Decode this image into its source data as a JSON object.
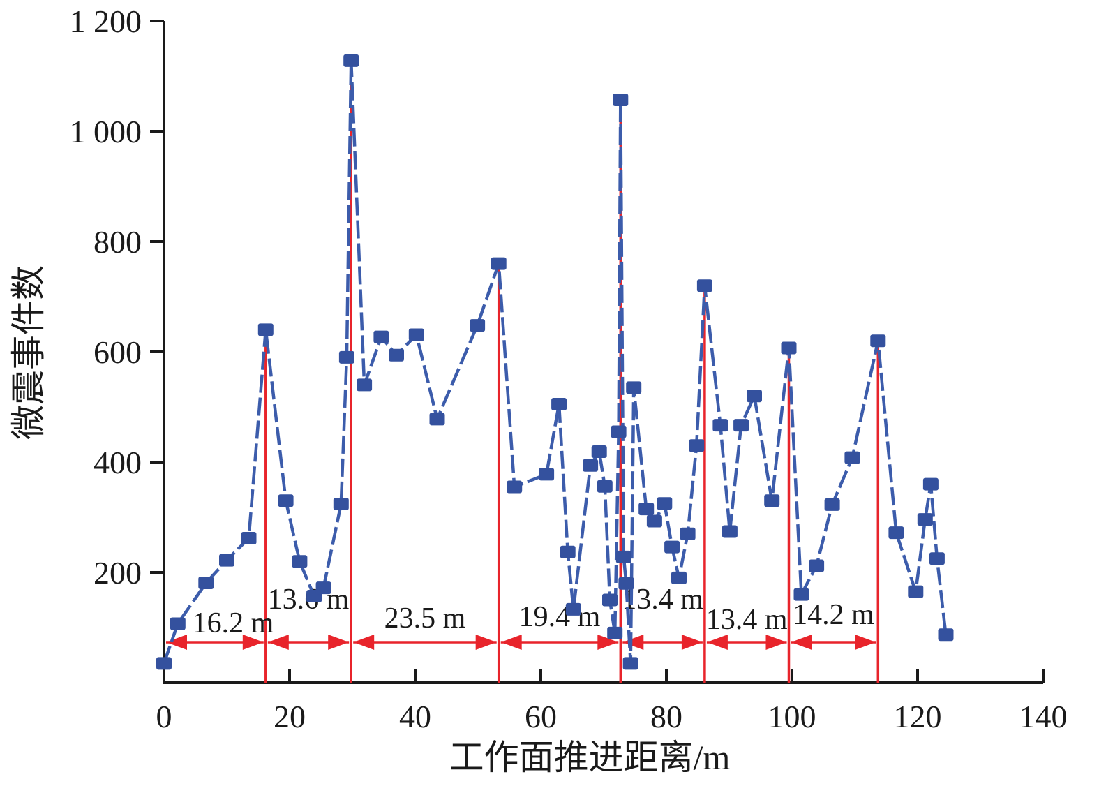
{
  "chart_data": {
    "type": "line",
    "title": "",
    "xlabel": "工作面推进距离/m",
    "ylabel": "微震事件数",
    "xlim": [
      0,
      140
    ],
    "ylim": [
      0,
      1200
    ],
    "grid": false,
    "legend": "none",
    "x_ticks": [
      0,
      20,
      40,
      60,
      80,
      100,
      120,
      140
    ],
    "y_ticks": [
      {
        "value": 200,
        "label": "200"
      },
      {
        "value": 400,
        "label": "400"
      },
      {
        "value": 600,
        "label": "600"
      },
      {
        "value": 800,
        "label": "800"
      },
      {
        "value": 1000,
        "label": "1 000"
      },
      {
        "value": 1200,
        "label": "1 200"
      }
    ],
    "series": [
      {
        "name": "微震事件数",
        "marker": "square",
        "x": [
          0,
          2.2,
          6.7,
          10,
          13.5,
          16.2,
          19.4,
          21.6,
          23.9,
          25.4,
          28.2,
          29.1,
          29.8,
          31.9,
          34.6,
          37,
          40.2,
          43.5,
          49.9,
          53.3,
          55.8,
          60.9,
          62.9,
          64.3,
          65.2,
          67.9,
          69.3,
          70.2,
          71,
          71.8,
          72.4,
          72.7,
          73.2,
          73.6,
          74.3,
          74.8,
          76.8,
          78.1,
          79.7,
          80.9,
          82,
          83.4,
          84.8,
          86.1,
          88.6,
          90.1,
          91.9,
          94,
          96.8,
          99.5,
          101.5,
          103.9,
          106.4,
          109.6,
          113.7,
          116.6,
          119.7,
          121.2,
          122.1,
          123.1,
          124.5
        ],
        "y": [
          35,
          107,
          181,
          222,
          262,
          640,
          330,
          220,
          157,
          172,
          324,
          590,
          1128,
          540,
          627,
          594,
          631,
          478,
          648,
          760,
          355,
          378,
          505,
          237,
          133,
          394,
          419,
          356,
          150,
          90,
          455,
          1057,
          228,
          180,
          35,
          535,
          315,
          293,
          325,
          246,
          190,
          270,
          430,
          720,
          467,
          274,
          467,
          520,
          330,
          607,
          160,
          212,
          323,
          408,
          620,
          272,
          165,
          296,
          360,
          225,
          87
        ]
      }
    ],
    "peak_lines": [
      {
        "x": 16.2,
        "top": 640
      },
      {
        "x": 29.8,
        "top": 1128
      },
      {
        "x": 53.3,
        "top": 760
      },
      {
        "x": 72.7,
        "top": 1057
      },
      {
        "x": 86.1,
        "top": 720
      },
      {
        "x": 99.5,
        "top": 607
      },
      {
        "x": 113.7,
        "top": 620
      }
    ],
    "intervals": [
      {
        "from": 0,
        "to": 16.2,
        "label": "16.2 m",
        "label_dx": 26,
        "label_y": 906
      },
      {
        "from": 16.2,
        "to": 29.8,
        "label": "13.6 m",
        "label_dx": 0,
        "label_y": 872
      },
      {
        "from": 29.8,
        "to": 53.3,
        "label": "23.5 m",
        "label_dx": 0,
        "label_y": 899
      },
      {
        "from": 53.3,
        "to": 72.7,
        "label": "19.4 m",
        "label_dx": 0,
        "label_y": 897
      },
      {
        "from": 72.7,
        "to": 86.1,
        "label": "13.4 m",
        "label_dx": 0,
        "label_y": 872
      },
      {
        "from": 86.1,
        "to": 99.5,
        "label": "13.4 m",
        "label_dx": 0,
        "label_y": 901
      },
      {
        "from": 99.5,
        "to": 113.7,
        "label": "14.2 m",
        "label_dx": 0,
        "label_y": 894
      }
    ],
    "colors": {
      "marker_fill": "#34519e",
      "line_stroke": "#3c5cab",
      "annotation_red": "#e8242b",
      "axis_black": "#1a1a1a"
    }
  }
}
